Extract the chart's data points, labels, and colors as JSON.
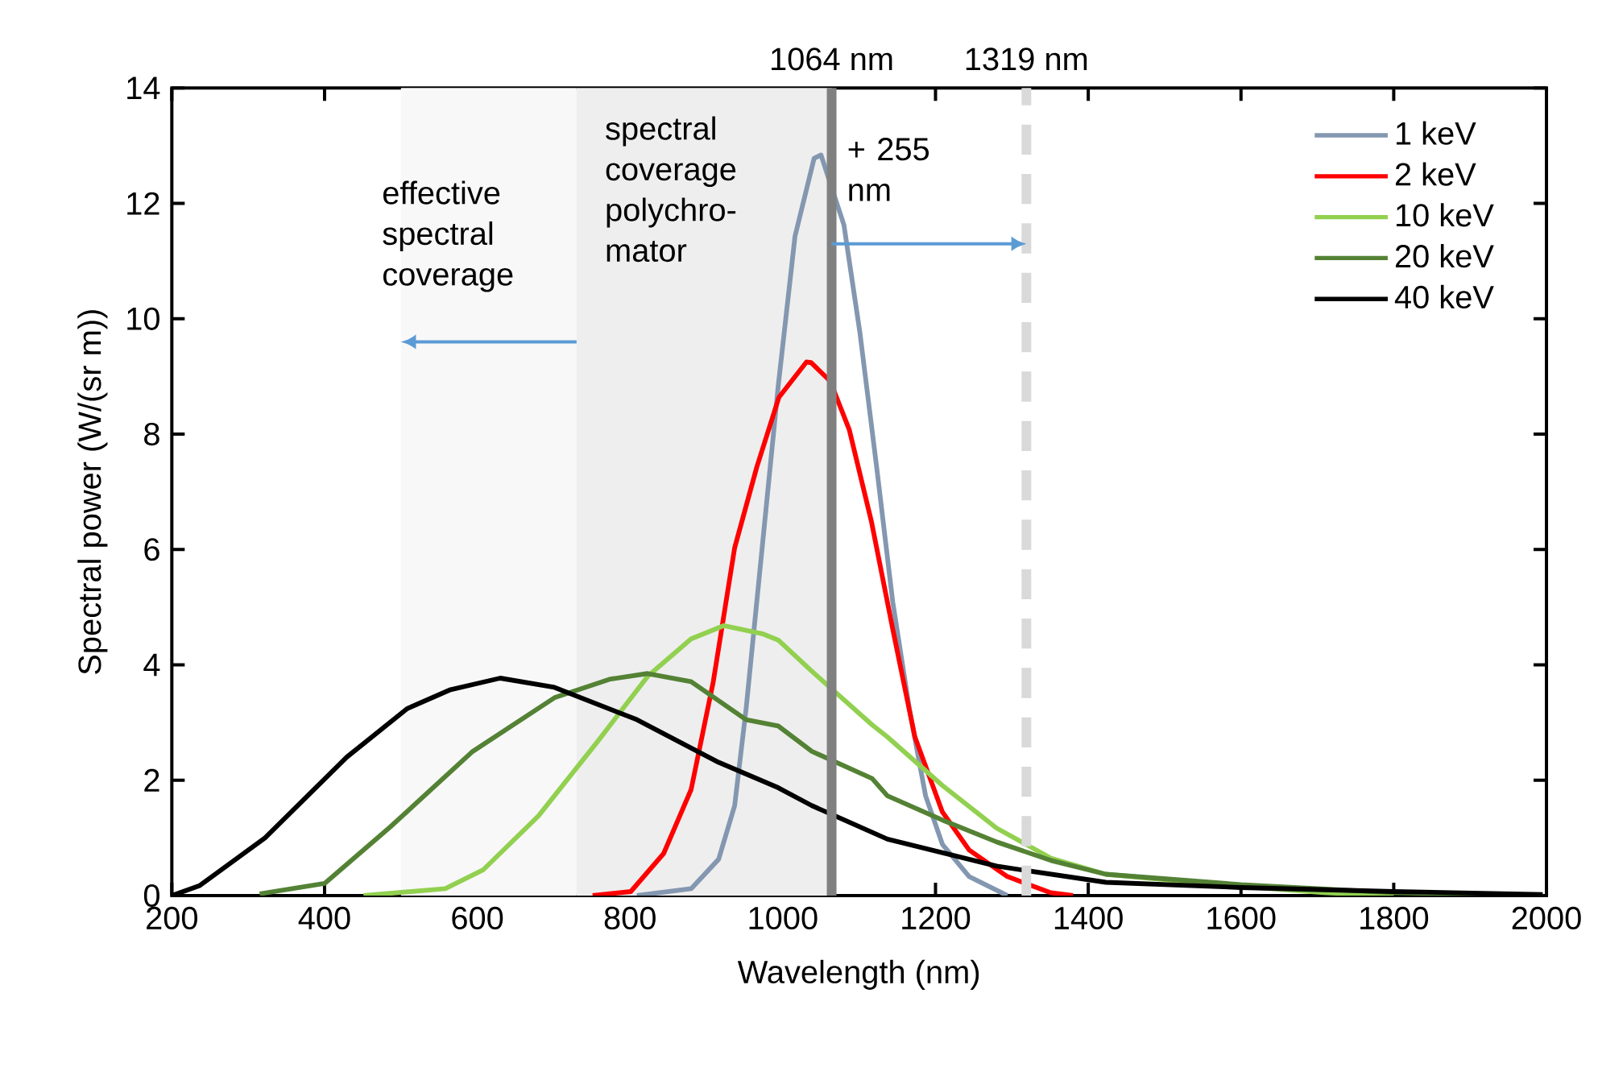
{
  "chart_data": {
    "type": "line",
    "xlabel": "Wavelength (nm)",
    "ylabel": "Spectral power (W/(sr m))",
    "xlim": [
      200,
      2000
    ],
    "xticks": [
      200,
      400,
      600,
      800,
      1000,
      1200,
      1400,
      1600,
      1800,
      2000
    ],
    "ylim": [
      0,
      14
    ],
    "yticks": [
      0,
      2,
      4,
      6,
      8,
      10,
      12,
      14
    ],
    "grid": false,
    "legend": "top right",
    "marker": "none",
    "line_style": "solid",
    "series": [
      {
        "name": "1 keV",
        "color": "#8497b0",
        "x": [
          809,
          880,
          916,
          937,
          952,
          973,
          994,
          1016,
          1041,
          1050,
          1080,
          1101,
          1123,
          1144,
          1166,
          1187,
          1209,
          1244,
          1294
        ],
        "values": [
          0,
          0.12,
          0.63,
          1.56,
          3.24,
          6.03,
          8.83,
          11.43,
          12.78,
          12.84,
          11.63,
          9.76,
          7.42,
          5.09,
          3.22,
          1.73,
          0.89,
          0.33,
          0
        ]
      },
      {
        "name": "2 keV",
        "color": "#ff0000",
        "x": [
          751,
          801,
          844,
          880,
          909,
          937,
          966,
          995,
          1031,
          1037,
          1062,
          1087,
          1116,
          1144,
          1173,
          1209,
          1244,
          1294,
          1351,
          1380
        ],
        "values": [
          0,
          0.07,
          0.73,
          1.84,
          3.71,
          6.03,
          7.43,
          8.64,
          9.25,
          9.24,
          8.92,
          8.08,
          6.49,
          4.62,
          2.75,
          1.45,
          0.79,
          0.33,
          0.05,
          0
        ]
      },
      {
        "name": "10 keV",
        "color": "#92d050",
        "x": [
          451,
          558,
          608,
          680,
          758,
          823,
          880,
          923,
          973,
          994,
          1038,
          1117,
          1137,
          1209,
          1280,
          1351,
          1423,
          1600,
          1709,
          1800
        ],
        "values": [
          0,
          0.12,
          0.45,
          1.38,
          2.68,
          3.8,
          4.45,
          4.68,
          4.54,
          4.43,
          3.89,
          2.96,
          2.75,
          1.91,
          1.17,
          0.65,
          0.37,
          0.16,
          0.05,
          0
        ]
      },
      {
        "name": "20 keV",
        "color": "#548235",
        "x": [
          315,
          400,
          486,
          594,
          701,
          773,
          823,
          880,
          952,
          994,
          1038,
          1117,
          1137,
          1209,
          1280,
          1351,
          1423,
          1600,
          1800,
          1995
        ],
        "values": [
          0.03,
          0.21,
          1.19,
          2.5,
          3.43,
          3.75,
          3.85,
          3.71,
          3.05,
          2.94,
          2.5,
          2.03,
          1.73,
          1.31,
          0.93,
          0.61,
          0.37,
          0.19,
          0.05,
          0
        ]
      },
      {
        "name": "40 keV",
        "color": "#000000",
        "x": [
          200,
          236,
          322,
          429,
          508,
          565,
          630,
          701,
          809,
          916,
          994,
          1038,
          1137,
          1280,
          1423,
          1600,
          1800,
          1995
        ],
        "values": [
          0,
          0.17,
          1.0,
          2.4,
          3.24,
          3.57,
          3.77,
          3.61,
          3.05,
          2.31,
          1.87,
          1.56,
          0.98,
          0.51,
          0.23,
          0.14,
          0.07,
          0.02
        ]
      }
    ],
    "ref_lines": [
      {
        "axis": "x",
        "value": 1064,
        "label": "1064 nm",
        "color": "#808080",
        "line_style": "solid"
      },
      {
        "axis": "x",
        "value": 1319,
        "label": "1319 nm",
        "color": "#d9d9d9",
        "line_style": "dashed"
      }
    ],
    "bands": [
      {
        "axis": "x",
        "from": 500,
        "to": 730,
        "label": "effective spectral coverage",
        "color": "#f8f8f8"
      },
      {
        "axis": "x",
        "from": 730,
        "to": 1064,
        "label": "spectral coverage polychro-mator",
        "color": "#eeeeee"
      }
    ],
    "annotations": [
      "+ 255 nm"
    ]
  }
}
